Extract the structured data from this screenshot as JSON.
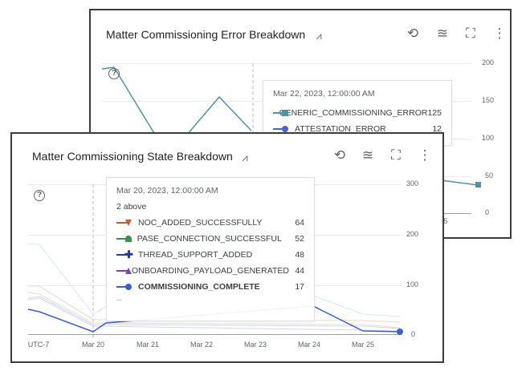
{
  "error_card": {
    "title": "Matter Commissioning Error Breakdown",
    "y_ticks": [
      "200",
      "150",
      "100",
      "50",
      "0"
    ],
    "tooltip": {
      "date": "Mar 22, 2023, 12:00:00 AM",
      "rows": [
        {
          "name": "GENERIC_COMMISSIONING_ERROR",
          "value": "125",
          "color": "#4e93a8",
          "marker": "square"
        },
        {
          "name": "ATTESTATION_ERROR",
          "value": "12",
          "color": "#4b63c8",
          "marker": "circle"
        }
      ]
    },
    "x_partial": "5"
  },
  "state_card": {
    "title": "Matter Commissioning State Breakdown",
    "y_ticks": [
      "300",
      "200",
      "100",
      "0"
    ],
    "x_ticks": [
      "UTC-7",
      "Mar 20",
      "Mar 21",
      "Mar 22",
      "Mar 23",
      "Mar 24",
      "Mar 25"
    ],
    "tooltip": {
      "date": "Mar 20, 2023, 12:00:00 AM",
      "above": "2 above",
      "rows": [
        {
          "name": "NOC_ADDED_SUCCESSFULLY",
          "value": "64",
          "color": "#c0602e",
          "marker": "triangle-down"
        },
        {
          "name": "PASE_CONNECTION_SUCCESSFUL",
          "value": "52",
          "color": "#3f8f4f",
          "marker": "pentagon"
        },
        {
          "name": "THREAD_SUPPORT_ADDED",
          "value": "48",
          "color": "#2e3a9a",
          "marker": "plus"
        },
        {
          "name": "ONBOARDING_PAYLOAD_GENERATED",
          "value": "44",
          "color": "#7a44b0",
          "marker": "triangle"
        },
        {
          "name": "COMMISSIONING_COMPLETE",
          "value": "17",
          "color": "#3b5fcf",
          "marker": "circle",
          "bold": true
        }
      ],
      "more": "–"
    }
  },
  "icons": [
    "chart-search-icon",
    "zoom-reset-icon",
    "legend-icon",
    "fullscreen-icon",
    "more-vert-icon",
    "help-icon"
  ]
}
